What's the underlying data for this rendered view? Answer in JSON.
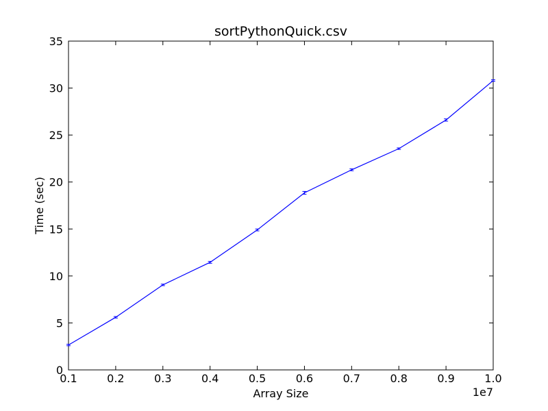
{
  "chart_data": {
    "type": "line",
    "title": "sortPythonQuick.csv",
    "xlabel": "Array Size",
    "ylabel": "Time (sec)",
    "x_offset_label": "1e7",
    "xlim": [
      0.1,
      1.0
    ],
    "ylim": [
      0,
      35
    ],
    "x_ticks": [
      0.1,
      0.2,
      0.3,
      0.4,
      0.5,
      0.6,
      0.7,
      0.8,
      0.9,
      1.0
    ],
    "x_tick_labels": [
      "0.1",
      "0.2",
      "0.3",
      "0.4",
      "0.5",
      "0.6",
      "0.7",
      "0.8",
      "0.9",
      "1.0"
    ],
    "y_ticks": [
      0,
      5,
      10,
      15,
      20,
      25,
      30,
      35
    ],
    "y_tick_labels": [
      "0",
      "5",
      "10",
      "15",
      "20",
      "25",
      "30",
      "35"
    ],
    "grid": false,
    "series": [
      {
        "color": "#0000ff",
        "x": [
          0.1,
          0.2,
          0.3,
          0.4,
          0.5,
          0.6,
          0.7,
          0.8,
          0.9,
          1.0
        ],
        "values": [
          2.65,
          5.6,
          9.05,
          11.45,
          14.9,
          18.85,
          21.3,
          23.55,
          26.6,
          30.8
        ],
        "error": [
          0.08,
          0.08,
          0.08,
          0.1,
          0.1,
          0.15,
          0.1,
          0.08,
          0.12,
          0.08
        ]
      }
    ]
  }
}
